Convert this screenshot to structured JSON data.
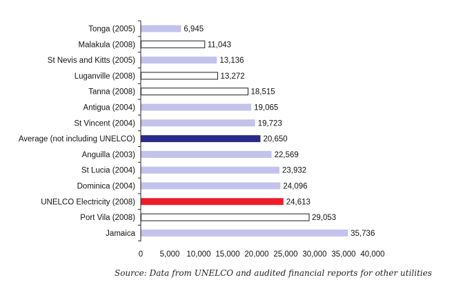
{
  "chart_data": {
    "type": "bar",
    "orientation": "horizontal",
    "title": "",
    "xlabel": "",
    "ylabel": "",
    "xlim": [
      0,
      40000
    ],
    "x_ticks": [
      0,
      5000,
      10000,
      15000,
      20000,
      25000,
      30000,
      35000,
      40000
    ],
    "x_tick_labels": [
      "0",
      "5,000",
      "10,000",
      "15,000",
      "20,000",
      "25,000",
      "30,000",
      "35,000",
      "40,000"
    ],
    "grid": false,
    "categories": [
      "Tonga (2005)",
      "Malakula (2008)",
      "St Nevis and Kitts (2005)",
      "Luganville (2008)",
      "Tanna (2008)",
      "Antigua (2004)",
      "St Vincent (2004)",
      "Average (not including UNELCO)",
      "Anguilla (2003)",
      "St Lucia (2004)",
      "Dominica (2004)",
      "UNELCO Electricity (2008)",
      "Port Vila (2008)",
      "Jamaica"
    ],
    "values": [
      6945,
      11043,
      13136,
      13272,
      18515,
      19065,
      19723,
      20650,
      22569,
      23932,
      24096,
      24613,
      29053,
      35736
    ],
    "value_labels": [
      "6,945",
      "11,043",
      "13,136",
      "13,272",
      "18,515",
      "19,065",
      "19,723",
      "20,650",
      "22,569",
      "23,932",
      "24,096",
      "24,613",
      "29,053",
      "35,736"
    ],
    "bar_styles": [
      "lavender",
      "outline",
      "lavender",
      "outline",
      "outline",
      "lavender",
      "lavender",
      "navy",
      "lavender",
      "lavender",
      "lavender",
      "red",
      "outline",
      "lavender"
    ]
  },
  "colors": {
    "lavender": "#c2c2ec",
    "outline_fill": "#ffffff",
    "outline_stroke": "#1a1a1a",
    "navy": "#2a2a88",
    "red": "#ee1c2b",
    "axis": "#222222"
  },
  "source_note": "Source: Data from UNELCO and audited financial reports for other utilities"
}
